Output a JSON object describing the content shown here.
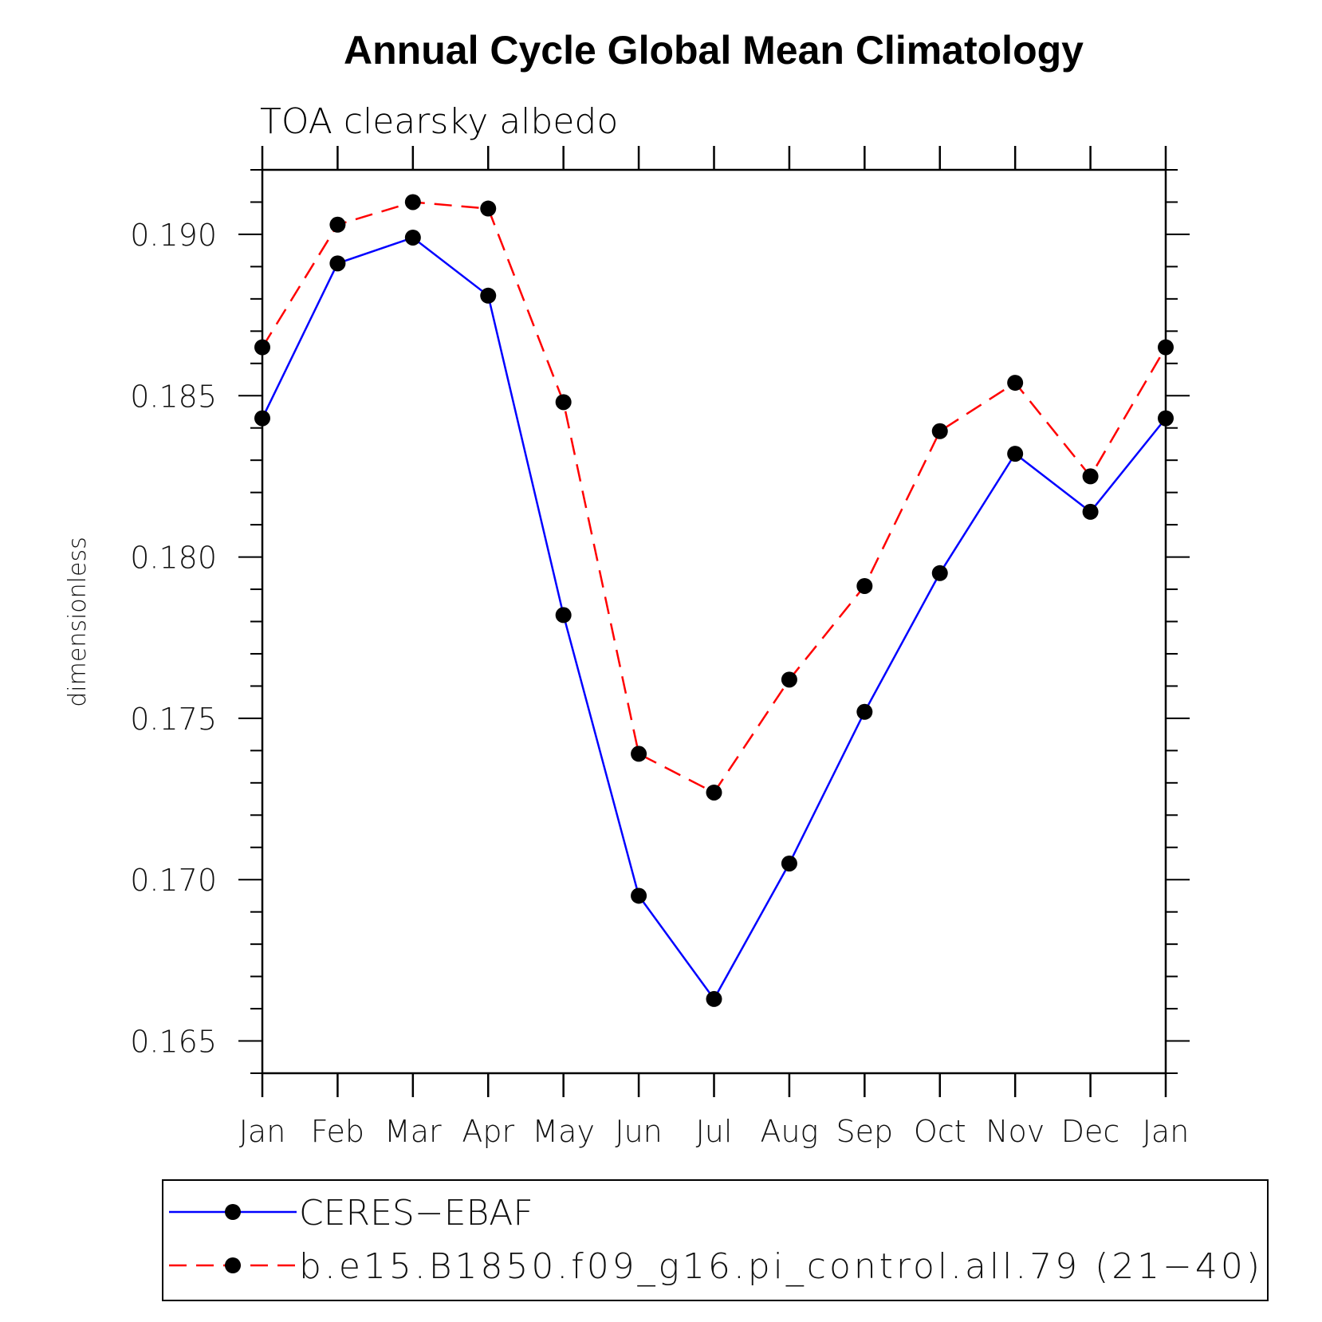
{
  "chart_data": {
    "type": "line",
    "title": "Annual Cycle Global Mean Climatology",
    "subtitle": "TOA clearsky albedo",
    "ylabel": "dimensionless",
    "xlabel": "",
    "categories": [
      "Jan",
      "Feb",
      "Mar",
      "Apr",
      "May",
      "Jun",
      "Jul",
      "Aug",
      "Sep",
      "Oct",
      "Nov",
      "Dec",
      "Jan"
    ],
    "ylim": [
      0.164,
      0.192
    ],
    "yticks": [
      "0.165",
      "0.170",
      "0.175",
      "0.180",
      "0.185",
      "0.190"
    ],
    "grid": false,
    "legend_position": "bottom",
    "series": [
      {
        "name": "CERES−EBAF",
        "color": "#0000ff",
        "dash": "solid",
        "marker": "filled-circle",
        "values": [
          0.1843,
          0.1891,
          0.1899,
          0.1881,
          0.1782,
          0.1695,
          0.1663,
          0.1705,
          0.1752,
          0.1795,
          0.1832,
          0.1814,
          0.1843
        ]
      },
      {
        "name": "b.e15.B1850.f09_g16.pi_control.all.79 (21−40)",
        "color": "#ff0000",
        "dash": "dashed",
        "marker": "filled-circle",
        "values": [
          0.1865,
          0.1903,
          0.191,
          0.1908,
          0.1848,
          0.1739,
          0.1727,
          0.1762,
          0.1791,
          0.1839,
          0.1854,
          0.1825,
          0.1865
        ]
      }
    ]
  }
}
